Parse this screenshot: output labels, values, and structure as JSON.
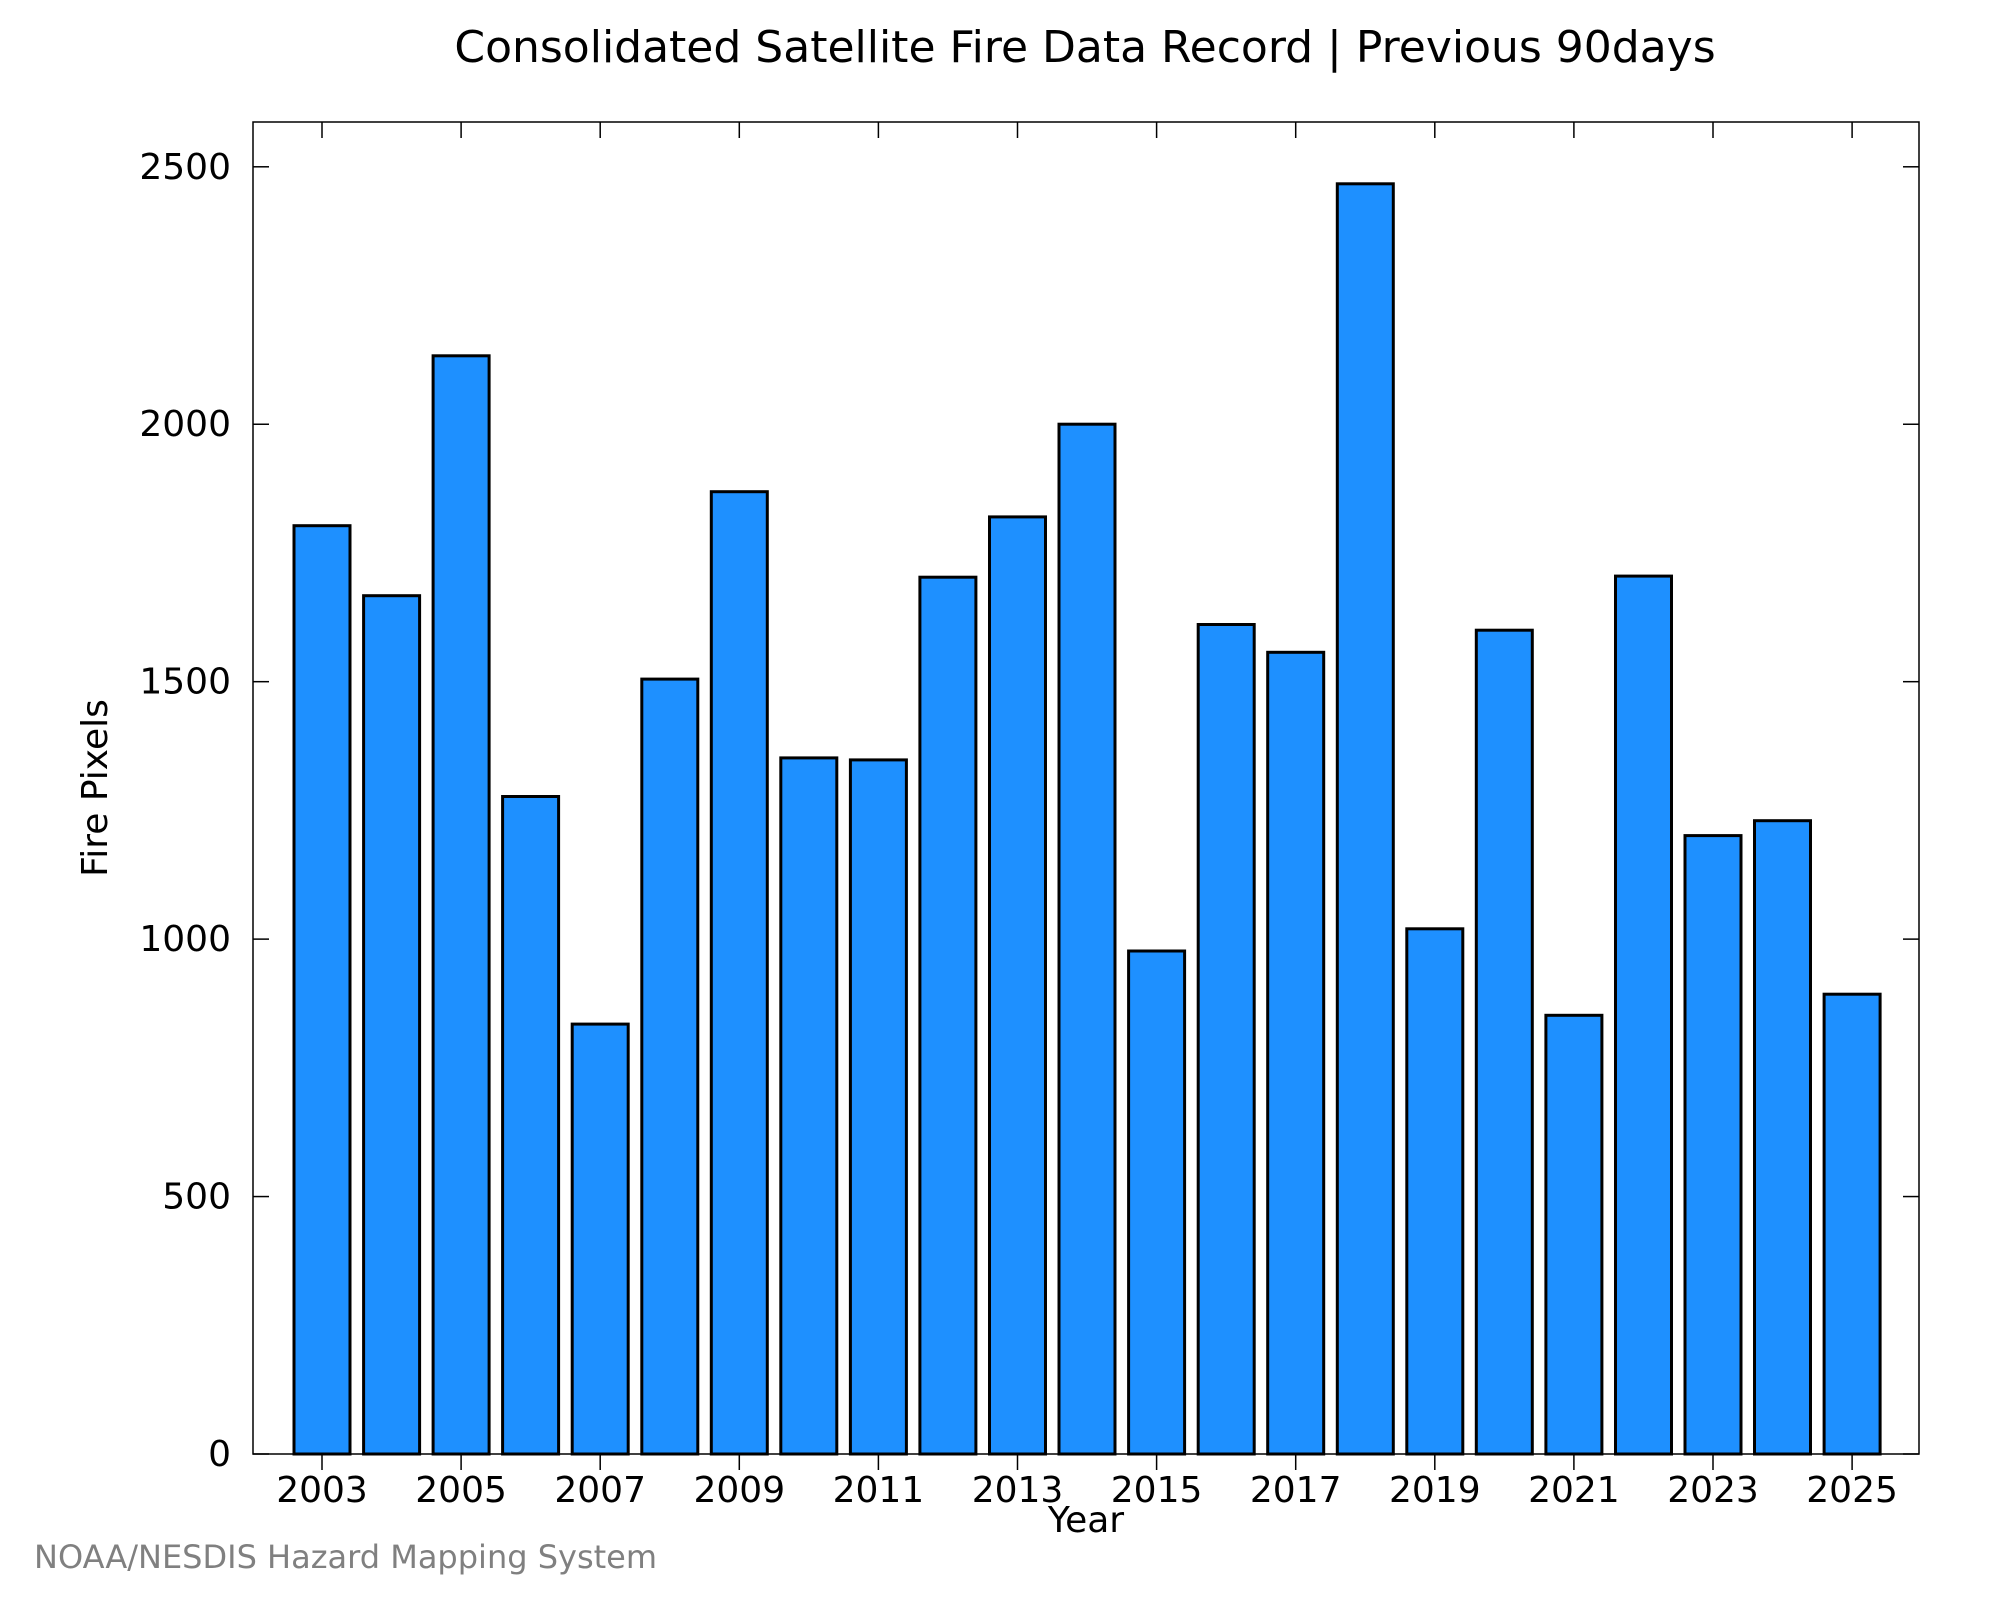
{
  "chart_data": {
    "type": "bar",
    "title": "Consolidated Satellite Fire Data Record | Previous 90days",
    "xlabel": "Year",
    "ylabel": "Fire Pixels",
    "categories": [
      "2003",
      "2004",
      "2005",
      "2006",
      "2007",
      "2008",
      "2009",
      "2010",
      "2011",
      "2012",
      "2013",
      "2014",
      "2015",
      "2016",
      "2017",
      "2018",
      "2019",
      "2020",
      "2021",
      "2022",
      "2023",
      "2024",
      "2025"
    ],
    "values": [
      1803,
      1667,
      2133,
      1277,
      835,
      1505,
      1869,
      1352,
      1348,
      1703,
      1820,
      2000,
      977,
      1611,
      1557,
      2467,
      1020,
      1600,
      852,
      1705,
      1201,
      1230,
      893
    ],
    "x_tick_labels": [
      "2003",
      "2005",
      "2007",
      "2009",
      "2011",
      "2013",
      "2015",
      "2017",
      "2019",
      "2021",
      "2023",
      "2025"
    ],
    "y_tick_labels": [
      "0",
      "500",
      "1000",
      "1500",
      "2000",
      "2500"
    ],
    "ylim": [
      0,
      2587
    ],
    "grid": false,
    "legend": "none",
    "bar_color": "#1e90ff",
    "bar_edge_color": "#000000"
  },
  "source_note": "NOAA/NESDIS Hazard Mapping System"
}
